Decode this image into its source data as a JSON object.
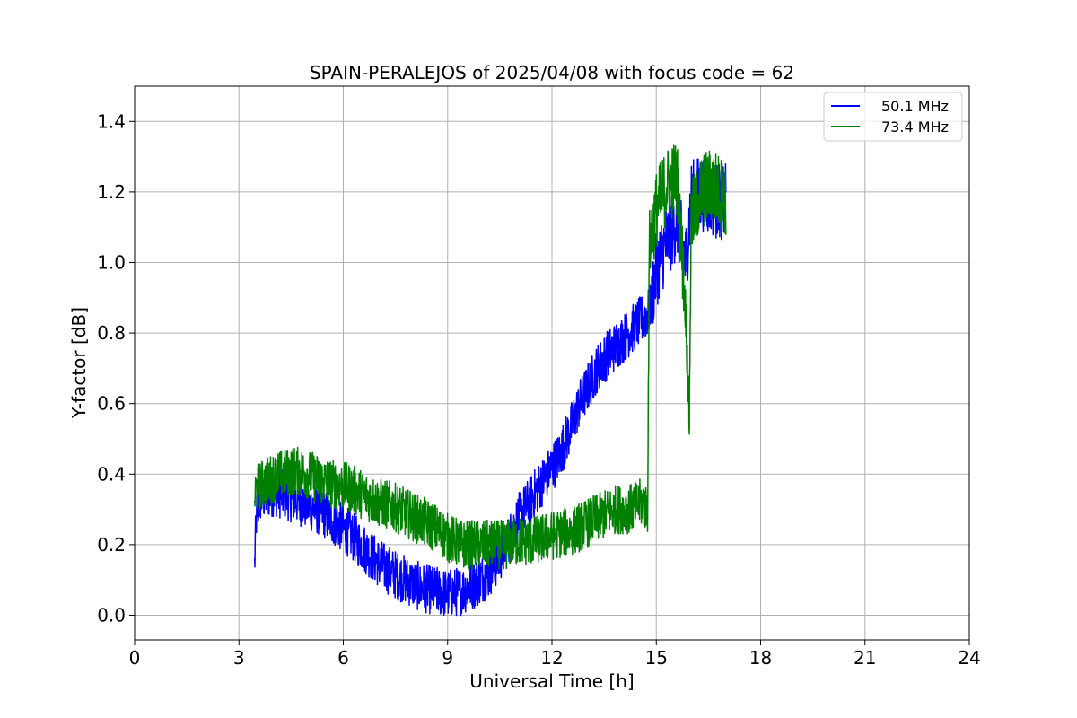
{
  "chart_data": {
    "type": "line",
    "title": "SPAIN-PERALEJOS of 2025/04/08 with focus code = 62",
    "xlabel": "Universal Time [h]",
    "ylabel": "Y-factor [dB]",
    "xlim": [
      0,
      24
    ],
    "ylim": [
      -0.07,
      1.5
    ],
    "xticks": [
      0,
      3,
      6,
      9,
      12,
      15,
      18,
      21,
      24
    ],
    "yticks": [
      0.0,
      0.2,
      0.4,
      0.6,
      0.8,
      1.0,
      1.2,
      1.4
    ],
    "grid": true,
    "legend_position": "top-right",
    "series": [
      {
        "name": "50.1 MHz",
        "color": "#0000ff",
        "x": [
          3.45,
          3.5,
          3.6,
          3.8,
          4.0,
          4.3,
          4.6,
          5.0,
          5.4,
          5.8,
          6.2,
          6.6,
          7.0,
          7.4,
          7.8,
          8.2,
          8.6,
          9.0,
          9.4,
          9.8,
          10.2,
          10.6,
          11.0,
          11.4,
          11.8,
          12.2,
          12.5,
          12.8,
          13.0,
          13.3,
          13.6,
          14.0,
          14.4,
          14.8,
          15.0,
          15.3,
          15.6,
          15.85,
          16.0,
          16.3,
          16.6,
          17.0
        ],
        "y": [
          0.14,
          0.28,
          0.33,
          0.34,
          0.35,
          0.34,
          0.33,
          0.31,
          0.29,
          0.26,
          0.23,
          0.19,
          0.15,
          0.12,
          0.1,
          0.08,
          0.07,
          0.06,
          0.07,
          0.09,
          0.12,
          0.18,
          0.27,
          0.33,
          0.39,
          0.45,
          0.52,
          0.6,
          0.64,
          0.7,
          0.74,
          0.78,
          0.82,
          0.86,
          0.98,
          1.06,
          1.12,
          1.0,
          1.18,
          1.2,
          1.18,
          1.17
        ]
      },
      {
        "name": "73.4 MHz",
        "color": "#008000",
        "x": [
          3.45,
          3.5,
          3.8,
          4.2,
          4.6,
          5.0,
          5.4,
          5.8,
          6.2,
          6.6,
          7.0,
          7.4,
          7.8,
          8.2,
          8.6,
          9.0,
          9.4,
          9.8,
          10.2,
          10.6,
          11.0,
          11.4,
          11.8,
          12.2,
          12.6,
          13.0,
          13.4,
          13.8,
          14.2,
          14.6,
          14.75,
          14.8,
          15.0,
          15.3,
          15.6,
          15.85,
          15.95,
          16.0,
          16.3,
          16.6,
          17.0
        ],
        "y": [
          0.33,
          0.36,
          0.38,
          0.4,
          0.41,
          0.4,
          0.38,
          0.37,
          0.36,
          0.34,
          0.32,
          0.31,
          0.29,
          0.27,
          0.25,
          0.22,
          0.2,
          0.2,
          0.2,
          0.2,
          0.21,
          0.21,
          0.22,
          0.23,
          0.24,
          0.26,
          0.28,
          0.3,
          0.3,
          0.32,
          0.3,
          1.05,
          1.15,
          1.22,
          1.24,
          0.85,
          0.55,
          1.12,
          1.2,
          1.22,
          1.18
        ]
      }
    ]
  }
}
